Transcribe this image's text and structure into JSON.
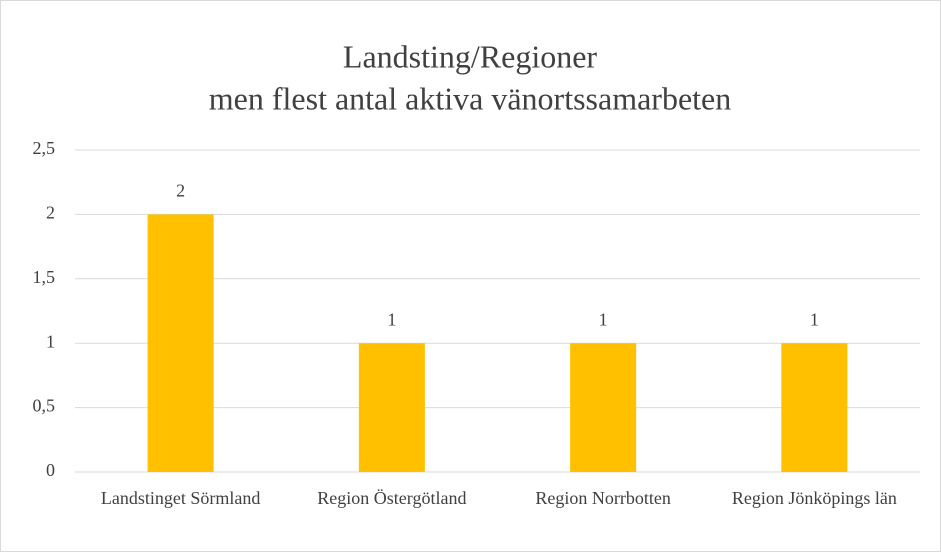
{
  "chart_data": {
    "type": "bar",
    "title": [
      "Landsting/Regioner",
      "men flest antal aktiva vänortssamarbeten"
    ],
    "categories": [
      "Landstinget Sörmland",
      "Region Östergötland",
      "Region Norrbotten",
      "Region Jönköpings län"
    ],
    "values": [
      2,
      1,
      1,
      1
    ],
    "color": "#ffc000",
    "ylim": [
      0,
      2.5
    ],
    "yticks": [
      0,
      {
        "value": 0.5,
        "label": "0,5"
      },
      1,
      {
        "value": 1.5,
        "label": "1,5"
      },
      2,
      {
        "value": 2.5,
        "label": "2,5"
      }
    ],
    "grid": true
  }
}
